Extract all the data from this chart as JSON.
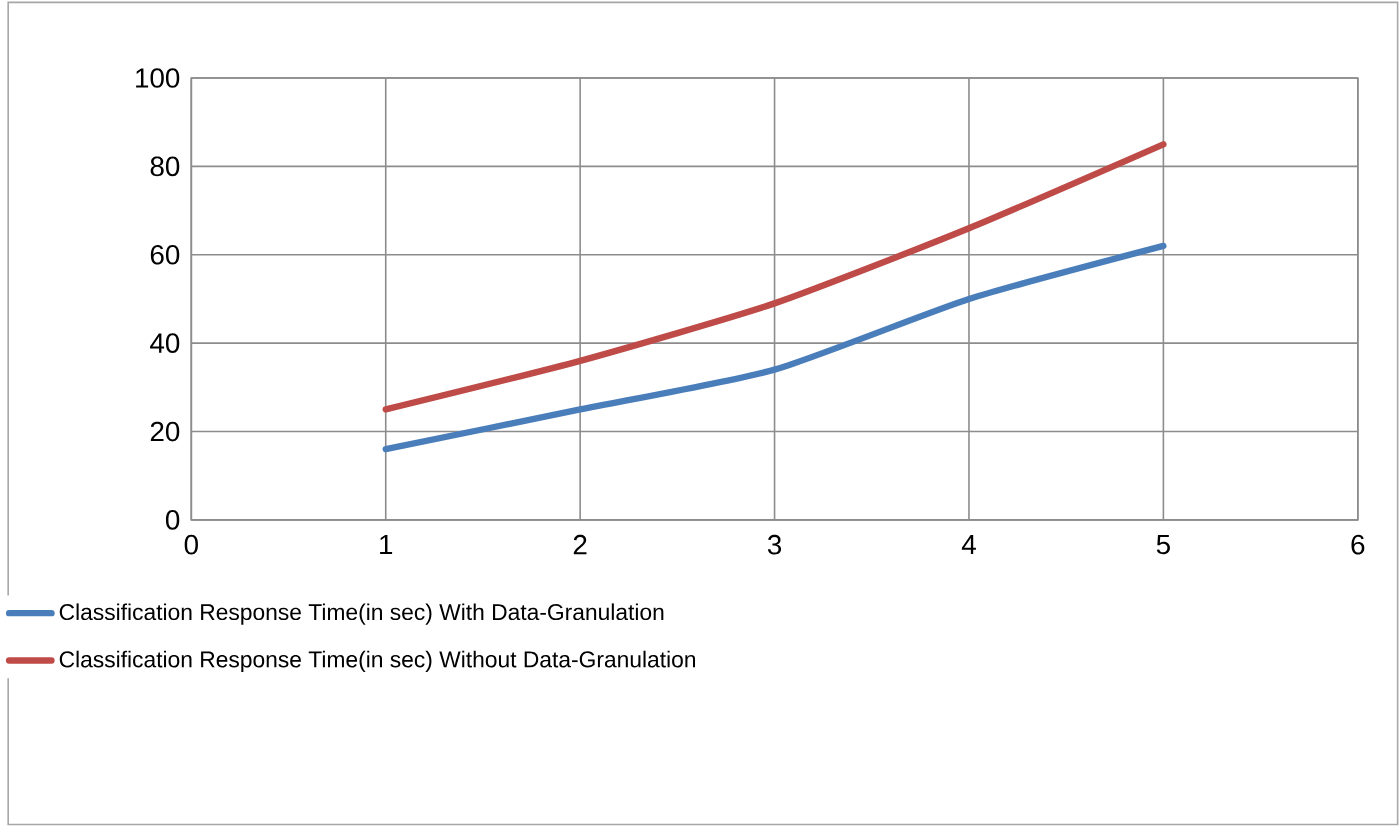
{
  "chart_data": {
    "type": "line",
    "x": [
      1,
      2,
      3,
      4,
      5
    ],
    "series": [
      {
        "name": "Classification Response Time(in sec) With Data-Granulation",
        "color": "#4a7ebb",
        "values": [
          16,
          25,
          34,
          50,
          62
        ]
      },
      {
        "name": "Classification Response Time(in sec) Without Data-Granulation",
        "color": "#be4b48",
        "values": [
          25,
          36,
          49,
          66,
          85
        ]
      }
    ],
    "xlim": [
      0,
      6
    ],
    "xticks": [
      0,
      1,
      2,
      3,
      4,
      5,
      6
    ],
    "ylim": [
      0,
      100
    ],
    "yticks": [
      0,
      20,
      40,
      60,
      80,
      100
    ],
    "grid": true,
    "legend": "bottom",
    "marker": "none",
    "line_style": "solid"
  }
}
